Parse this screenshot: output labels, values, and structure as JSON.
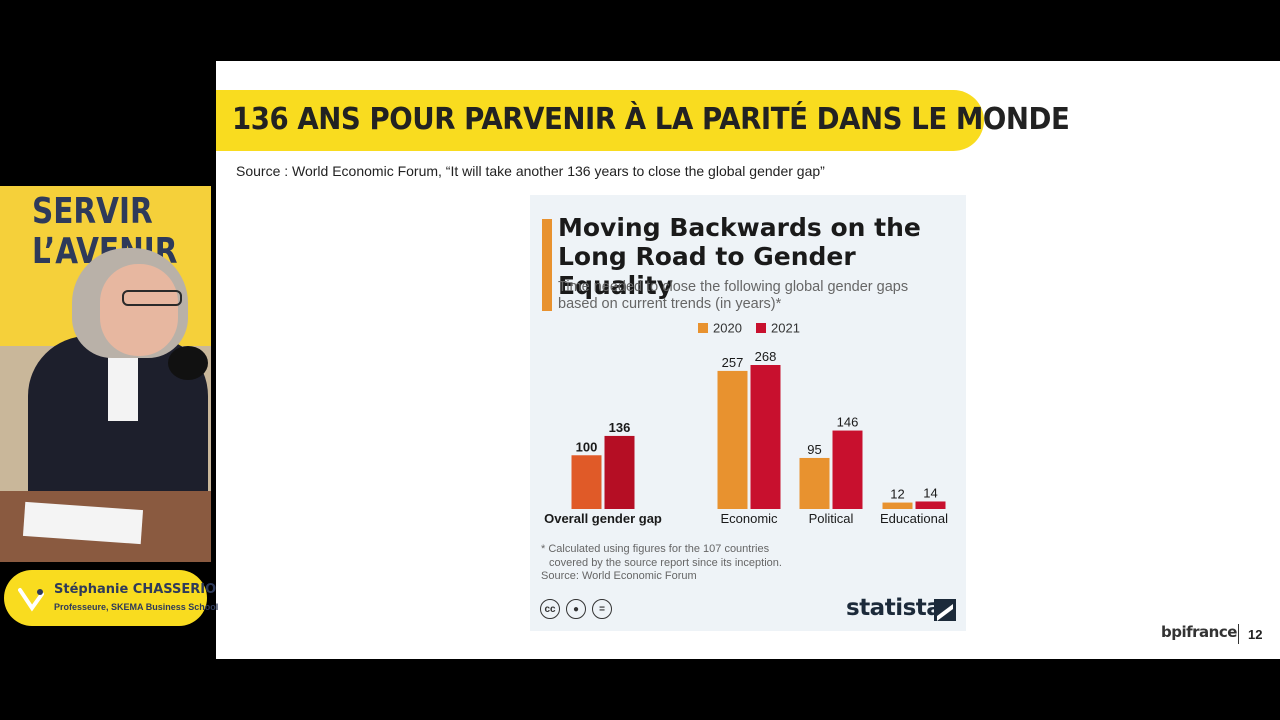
{
  "slide": {
    "banner_title": "136 ANS POUR PARVENIR À LA PARITÉ DANS LE MONDE",
    "source_text": "Source : World Economic Forum, “It will take another 136 years to close the global gender gap”",
    "page_number": "12",
    "brand": "bpifrance",
    "accent_color": "#f9dc1f"
  },
  "chart_card": {
    "title_line1": "Moving Backwards on the",
    "title_line2": "Long Road to Gender Equality",
    "subtitle_line1": "Time needed to close the following global gender gaps",
    "subtitle_line2": "based on current trends (in years)*",
    "footnote_line1": "* Calculated using figures for the 107 countries",
    "footnote_line2": "covered by the source report since its inception.",
    "footnote_line3": "Source: World Economic Forum",
    "cc_icons": [
      "cc",
      "by",
      "nd"
    ],
    "brand": "statista"
  },
  "chart_data": {
    "type": "bar",
    "categories": [
      "Overall gender gap",
      "Economic",
      "Political",
      "Educational"
    ],
    "series": [
      {
        "name": "2020",
        "values": [
          100,
          257,
          95,
          12
        ],
        "color": "#e8922f"
      },
      {
        "name": "2021",
        "values": [
          136,
          268,
          146,
          14
        ],
        "color": "#c8102e"
      }
    ],
    "highlight_colors": {
      "2020": "#e05a28",
      "2021": "#b50e24"
    },
    "title": "Moving Backwards on the Long Road to Gender Equality",
    "ylim": [
      0,
      268
    ],
    "legend_placement": "top",
    "grid": false
  },
  "speaker": {
    "backdrop_text_line1": "SERVIR",
    "backdrop_text_line2": "L’AVENIR",
    "name": "Stéphanie CHASSERIO",
    "role": "Professeure, SKEMA Business School"
  }
}
